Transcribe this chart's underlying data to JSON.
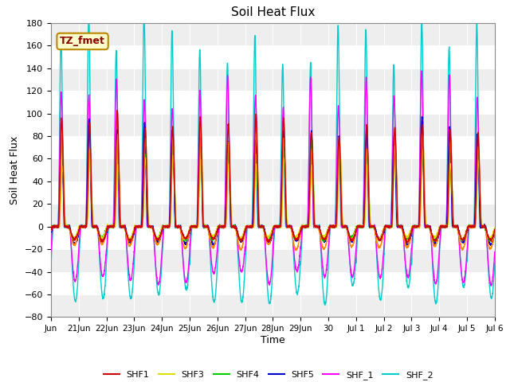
{
  "title": "Soil Heat Flux",
  "xlabel": "Time",
  "ylabel": "Soil Heat Flux",
  "ylim": [
    -80,
    180
  ],
  "yticks": [
    -80,
    -60,
    -40,
    -20,
    0,
    20,
    40,
    60,
    80,
    100,
    120,
    140,
    160,
    180
  ],
  "annotation_text": "TZ_fmet",
  "annotation_bg": "#FFFFCC",
  "annotation_border": "#BB8800",
  "colors": {
    "SHF1": "#CC0000",
    "SHF2": "#FF8800",
    "SHF3": "#DDDD00",
    "SHF4": "#00CC00",
    "SHF5": "#0000CC",
    "SHF_1": "#FF00FF",
    "SHF_2": "#00CCCC"
  },
  "fig_bg": "#FFFFFF",
  "axes_bg": "#FFFFFF",
  "xtick_labels": [
    "Jun",
    "21Jun",
    "22Jun",
    "23Jun",
    "24Jun",
    "25Jun",
    "26Jun",
    "27Jun",
    "28Jun",
    "29Jun",
    "30",
    "Jul 1",
    "Jul 2",
    "Jul 3",
    "Jul 4",
    "Jul 5",
    "Jul 6"
  ],
  "xtick_positions": [
    0,
    1,
    2,
    3,
    4,
    5,
    6,
    7,
    8,
    9,
    10,
    11,
    12,
    13,
    14,
    15,
    16
  ]
}
